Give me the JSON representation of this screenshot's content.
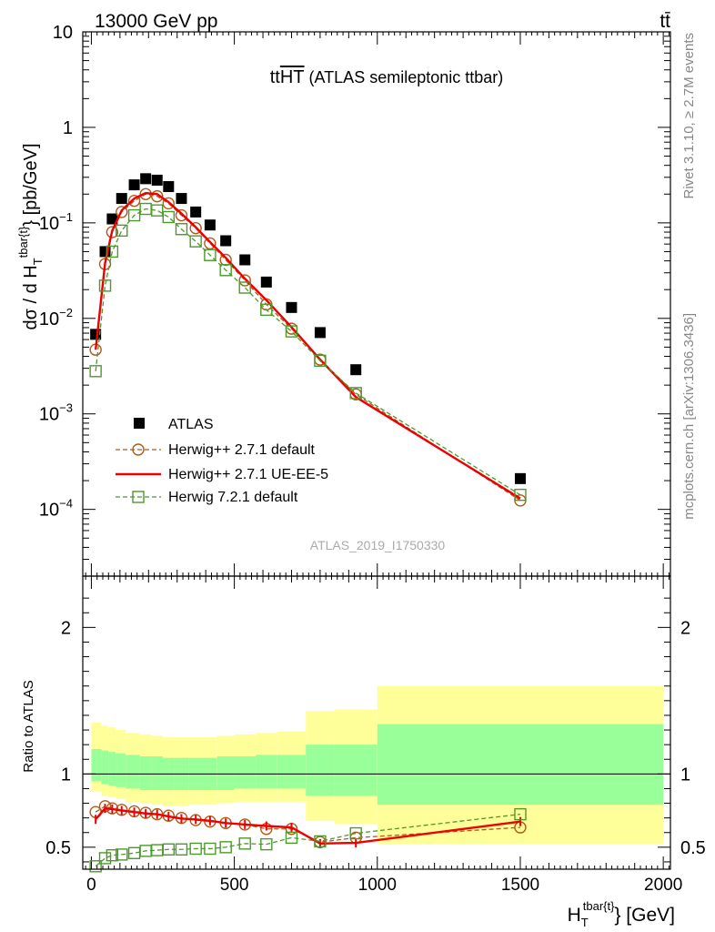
{
  "header": {
    "left": "13000 GeV pp",
    "right": "tt̄"
  },
  "side_labels": {
    "rivet": "Rivet 3.1.10, ≥ 2.7M events",
    "mcplots": "mcplots.cern.ch [arXiv:1306.3436]"
  },
  "chart_data": {
    "type": "scatter",
    "title": "tt̄HT (ATLAS semileptonic ttbar)",
    "analysis_id": "ATLAS_2019_I1750330",
    "xlabel": "H_T^{tbar{t}} [GeV]",
    "ylabel": "dσ / d H_T^{tbar{t}} [pb/GeV]",
    "ratio_ylabel": "Ratio to ATLAS",
    "xlim": [
      -30,
      2025
    ],
    "ylim": [
      2e-05,
      10
    ],
    "ratio_ylim": [
      0.35,
      2.35
    ],
    "y_scale": "log",
    "legend_position": "middle-left",
    "x_ticks": [
      0,
      500,
      1000,
      1500,
      2000
    ],
    "y_ticks": [
      {
        "v": 10,
        "mant": "10",
        "exp": ""
      },
      {
        "v": 1,
        "mant": "1",
        "exp": ""
      },
      {
        "v": 0.1,
        "mant": "10",
        "exp": "−1"
      },
      {
        "v": 0.01,
        "mant": "10",
        "exp": "−2"
      },
      {
        "v": 0.001,
        "mant": "10",
        "exp": "−3"
      },
      {
        "v": 0.0001,
        "mant": "10",
        "exp": "−4"
      }
    ],
    "ratio_ticks": [
      0.5,
      1,
      2
    ],
    "bins": [
      [
        0,
        35
      ],
      [
        35,
        60
      ],
      [
        60,
        85
      ],
      [
        85,
        120
      ],
      [
        120,
        170
      ],
      [
        170,
        210
      ],
      [
        210,
        250
      ],
      [
        250,
        290
      ],
      [
        290,
        340
      ],
      [
        340,
        390
      ],
      [
        390,
        440
      ],
      [
        440,
        500
      ],
      [
        500,
        575
      ],
      [
        575,
        650
      ],
      [
        650,
        750
      ],
      [
        750,
        850
      ],
      [
        850,
        1000
      ],
      [
        1000,
        2000
      ]
    ],
    "series": [
      {
        "name": "ATLAS",
        "color": "#000000",
        "marker": "filled-square",
        "x": [
          15,
          48,
          73,
          106,
          150,
          190,
          230,
          270,
          315,
          365,
          415,
          470,
          537,
          612,
          700,
          800,
          925,
          1500
        ],
        "y": [
          0.0068,
          0.05,
          0.11,
          0.18,
          0.25,
          0.29,
          0.28,
          0.24,
          0.18,
          0.13,
          0.095,
          0.065,
          0.041,
          0.024,
          0.013,
          0.0071,
          0.0029,
          0.00021
        ]
      },
      {
        "name": "Herwig++ 2.7.1 default",
        "color": "#b05a1a",
        "marker": "open-circle",
        "line": "dashed",
        "x": [
          15,
          48,
          73,
          106,
          150,
          190,
          230,
          270,
          315,
          365,
          415,
          470,
          537,
          612,
          700,
          800,
          925,
          1500
        ],
        "y": [
          0.0047,
          0.037,
          0.08,
          0.13,
          0.17,
          0.2,
          0.19,
          0.16,
          0.12,
          0.088,
          0.061,
          0.041,
          0.025,
          0.014,
          0.0078,
          0.0037,
          0.0016,
          0.000124
        ],
        "ratio": [
          0.74,
          0.78,
          0.765,
          0.755,
          0.745,
          0.735,
          0.725,
          0.715,
          0.7,
          0.685,
          0.675,
          0.665,
          0.655,
          0.625,
          0.625,
          0.535,
          0.565,
          0.635
        ]
      },
      {
        "name": "Herwig++ 2.7.1 UE-EE-5",
        "color": "#ee0000",
        "marker": "none",
        "line": "solid",
        "x": [
          15,
          48,
          73,
          106,
          150,
          190,
          230,
          270,
          315,
          365,
          415,
          470,
          537,
          612,
          700,
          800,
          925,
          1500
        ],
        "y": [
          0.0047,
          0.038,
          0.083,
          0.135,
          0.18,
          0.205,
          0.2,
          0.165,
          0.125,
          0.09,
          0.063,
          0.043,
          0.026,
          0.0155,
          0.0081,
          0.0037,
          0.0015,
          0.00013
        ],
        "ratio": [
          0.69,
          0.765,
          0.76,
          0.75,
          0.74,
          0.73,
          0.725,
          0.71,
          0.695,
          0.69,
          0.68,
          0.665,
          0.655,
          0.645,
          0.635,
          0.525,
          0.53,
          0.675
        ]
      },
      {
        "name": "Herwig 7.2.1 default",
        "color": "#4c9a2a",
        "marker": "open-square",
        "line": "dashed",
        "x": [
          15,
          48,
          73,
          106,
          150,
          190,
          230,
          270,
          315,
          365,
          415,
          470,
          537,
          612,
          700,
          800,
          925,
          1500
        ],
        "y": [
          0.0028,
          0.022,
          0.05,
          0.083,
          0.12,
          0.14,
          0.135,
          0.115,
          0.086,
          0.064,
          0.046,
          0.032,
          0.021,
          0.0123,
          0.0073,
          0.0036,
          0.00165,
          0.000142
        ],
        "ratio": [
          0.37,
          0.425,
          0.445,
          0.45,
          0.46,
          0.475,
          0.48,
          0.485,
          0.485,
          0.49,
          0.49,
          0.5,
          0.525,
          0.52,
          0.565,
          0.54,
          0.595,
          0.725
        ]
      }
    ],
    "ratio_bands": {
      "yellow_color": "#ffff99",
      "green_color": "#99ff99",
      "yellow_low": [
        0.88,
        0.85,
        0.84,
        0.83,
        0.81,
        0.8,
        0.79,
        0.78,
        0.78,
        0.79,
        0.79,
        0.8,
        0.81,
        0.81,
        0.81,
        0.68,
        0.66,
        0.52
      ],
      "yellow_high": [
        1.35,
        1.33,
        1.32,
        1.3,
        1.28,
        1.27,
        1.26,
        1.25,
        1.25,
        1.25,
        1.25,
        1.26,
        1.27,
        1.28,
        1.29,
        1.43,
        1.44,
        1.6
      ],
      "green_low": [
        0.95,
        0.93,
        0.92,
        0.91,
        0.9,
        0.89,
        0.89,
        0.89,
        0.89,
        0.89,
        0.89,
        0.89,
        0.9,
        0.9,
        0.9,
        0.85,
        0.85,
        0.79
      ],
      "green_high": [
        1.17,
        1.16,
        1.15,
        1.14,
        1.13,
        1.12,
        1.12,
        1.11,
        1.11,
        1.11,
        1.11,
        1.12,
        1.12,
        1.13,
        1.13,
        1.2,
        1.2,
        1.34
      ]
    }
  }
}
